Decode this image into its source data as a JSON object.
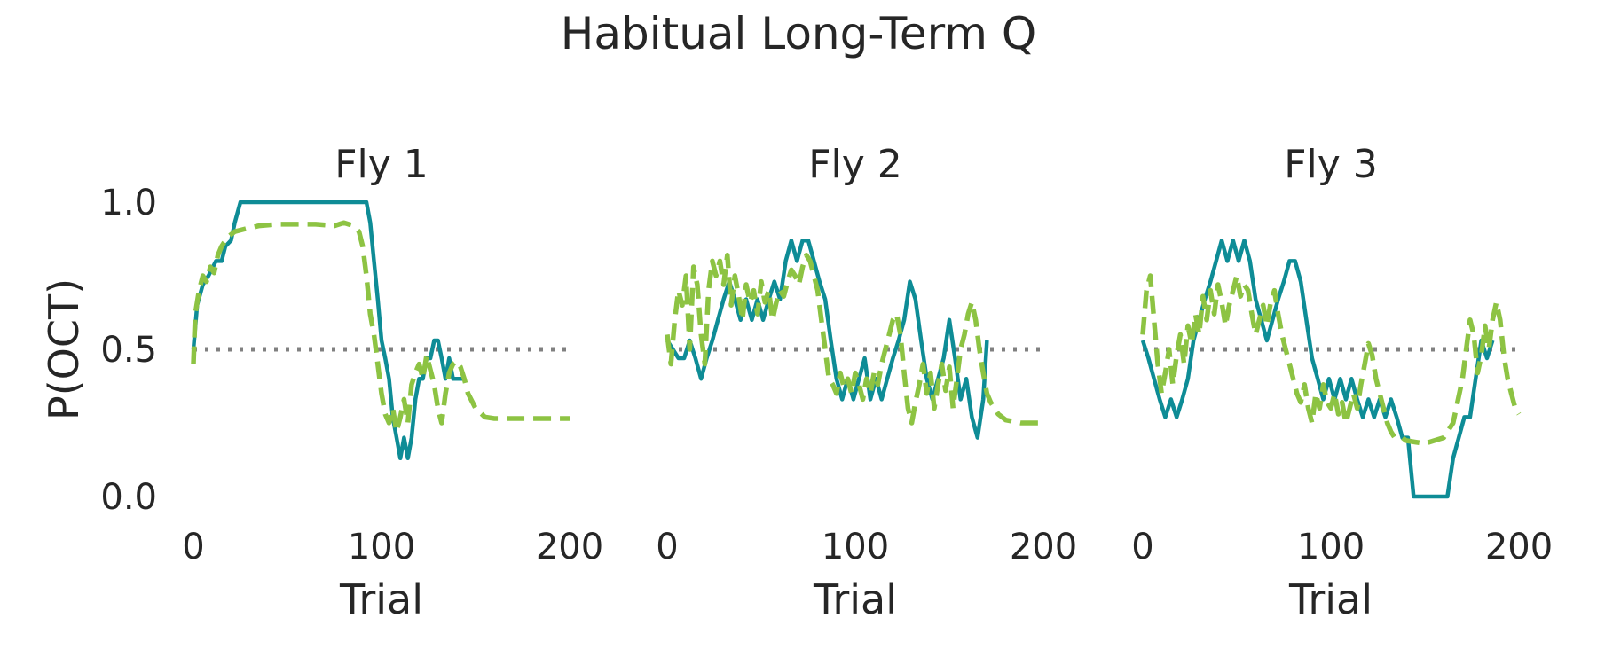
{
  "title": "Habitual Long-Term Q",
  "colors": {
    "observed": "#0e8c96",
    "model": "#8dc343",
    "chance": "#808080"
  },
  "chart_data": [
    {
      "type": "line",
      "title": "Fly 1",
      "xlabel": "Trial",
      "ylabel": "P(OCT)",
      "xlim": [
        0,
        200
      ],
      "ylim": [
        0,
        1
      ],
      "xticks": [
        "0",
        "100",
        "200"
      ],
      "yticks": [
        "0.0",
        "0.5",
        "1.0"
      ],
      "grid": false,
      "chance_level": 0.5,
      "series": [
        {
          "style": "solid",
          "x": [
            0,
            2,
            5,
            8,
            12,
            15,
            17,
            20,
            22,
            25,
            30,
            40,
            50,
            60,
            70,
            80,
            88,
            92,
            94,
            96,
            98,
            100,
            102,
            104,
            106,
            108,
            110,
            112,
            114,
            116,
            118,
            120,
            122,
            124,
            126,
            128,
            130,
            132,
            134,
            136,
            138,
            140,
            142,
            144
          ],
          "y": [
            0.5,
            0.65,
            0.72,
            0.75,
            0.8,
            0.8,
            0.85,
            0.87,
            0.93,
            1.0,
            1.0,
            1.0,
            1.0,
            1.0,
            1.0,
            1.0,
            1.0,
            1.0,
            0.93,
            0.8,
            0.67,
            0.53,
            0.47,
            0.4,
            0.27,
            0.2,
            0.13,
            0.2,
            0.13,
            0.2,
            0.33,
            0.4,
            0.4,
            0.47,
            0.47,
            0.53,
            0.53,
            0.47,
            0.4,
            0.47,
            0.4,
            0.4,
            0.4,
            0.4
          ]
        },
        {
          "style": "dashed",
          "x": [
            0,
            1,
            3,
            5,
            7,
            9,
            11,
            13,
            15,
            18,
            22,
            28,
            35,
            45,
            55,
            65,
            75,
            80,
            85,
            88,
            90,
            92,
            94,
            96,
            98,
            100,
            102,
            104,
            106,
            108,
            110,
            112,
            114,
            116,
            118,
            120,
            122,
            124,
            126,
            128,
            130,
            132,
            134,
            136,
            138,
            140,
            142,
            144,
            146,
            150,
            155,
            160,
            170,
            180,
            190,
            200
          ],
          "y": [
            0.45,
            0.62,
            0.7,
            0.75,
            0.73,
            0.78,
            0.76,
            0.82,
            0.85,
            0.88,
            0.9,
            0.91,
            0.92,
            0.925,
            0.925,
            0.925,
            0.92,
            0.93,
            0.92,
            0.9,
            0.85,
            0.75,
            0.62,
            0.55,
            0.45,
            0.35,
            0.28,
            0.25,
            0.3,
            0.22,
            0.27,
            0.33,
            0.25,
            0.38,
            0.42,
            0.45,
            0.4,
            0.48,
            0.43,
            0.38,
            0.3,
            0.25,
            0.35,
            0.42,
            0.45,
            0.46,
            0.44,
            0.4,
            0.35,
            0.3,
            0.27,
            0.265,
            0.265,
            0.265,
            0.265,
            0.265
          ]
        }
      ]
    },
    {
      "type": "line",
      "title": "Fly 2",
      "xlabel": "Trial",
      "ylabel": "",
      "xlim": [
        0,
        200
      ],
      "ylim": [
        0,
        1
      ],
      "xticks": [
        "0",
        "100",
        "200"
      ],
      "yticks": [],
      "grid": false,
      "chance_level": 0.5,
      "series": [
        {
          "style": "solid",
          "x": [
            0,
            3,
            6,
            9,
            12,
            15,
            18,
            21,
            24,
            27,
            30,
            33,
            36,
            39,
            42,
            45,
            48,
            51,
            54,
            57,
            60,
            63,
            66,
            69,
            72,
            75,
            78,
            81,
            84,
            87,
            90,
            93,
            96,
            99,
            102,
            105,
            108,
            111,
            114,
            117,
            120,
            123,
            126,
            129,
            132,
            135,
            138,
            141,
            144,
            147,
            150,
            153,
            156,
            159,
            162,
            165,
            168,
            170
          ],
          "y": [
            0.53,
            0.5,
            0.47,
            0.47,
            0.53,
            0.47,
            0.4,
            0.47,
            0.53,
            0.6,
            0.67,
            0.73,
            0.67,
            0.6,
            0.67,
            0.6,
            0.67,
            0.6,
            0.67,
            0.73,
            0.67,
            0.8,
            0.87,
            0.8,
            0.87,
            0.87,
            0.8,
            0.73,
            0.67,
            0.53,
            0.4,
            0.33,
            0.4,
            0.33,
            0.4,
            0.47,
            0.33,
            0.4,
            0.33,
            0.4,
            0.47,
            0.53,
            0.6,
            0.73,
            0.67,
            0.53,
            0.4,
            0.33,
            0.4,
            0.47,
            0.6,
            0.47,
            0.33,
            0.4,
            0.27,
            0.2,
            0.33,
            0.53
          ]
        },
        {
          "style": "dashed",
          "x": [
            0,
            2,
            4,
            6,
            8,
            10,
            12,
            14,
            16,
            18,
            20,
            22,
            24,
            26,
            28,
            30,
            32,
            34,
            36,
            38,
            40,
            42,
            44,
            46,
            48,
            50,
            52,
            54,
            56,
            58,
            60,
            62,
            64,
            66,
            68,
            70,
            72,
            74,
            76,
            78,
            80,
            82,
            84,
            86,
            88,
            90,
            92,
            94,
            96,
            98,
            100,
            102,
            104,
            106,
            108,
            110,
            112,
            114,
            116,
            118,
            120,
            122,
            124,
            126,
            128,
            130,
            132,
            134,
            136,
            138,
            140,
            142,
            144,
            146,
            148,
            150,
            152,
            154,
            156,
            158,
            160,
            162,
            164,
            166,
            168,
            170,
            172,
            174,
            176,
            178,
            180,
            184,
            188,
            192,
            196,
            200
          ],
          "y": [
            0.55,
            0.45,
            0.6,
            0.7,
            0.65,
            0.75,
            0.5,
            0.78,
            0.72,
            0.55,
            0.45,
            0.7,
            0.8,
            0.75,
            0.8,
            0.72,
            0.82,
            0.65,
            0.75,
            0.68,
            0.6,
            0.72,
            0.66,
            0.7,
            0.62,
            0.73,
            0.66,
            0.7,
            0.6,
            0.66,
            0.7,
            0.68,
            0.73,
            0.77,
            0.75,
            0.72,
            0.78,
            0.82,
            0.8,
            0.75,
            0.7,
            0.6,
            0.5,
            0.4,
            0.38,
            0.35,
            0.42,
            0.37,
            0.4,
            0.35,
            0.42,
            0.38,
            0.33,
            0.4,
            0.35,
            0.42,
            0.38,
            0.45,
            0.5,
            0.55,
            0.6,
            0.62,
            0.55,
            0.42,
            0.3,
            0.25,
            0.32,
            0.38,
            0.45,
            0.35,
            0.42,
            0.3,
            0.38,
            0.45,
            0.36,
            0.44,
            0.3,
            0.4,
            0.5,
            0.55,
            0.62,
            0.66,
            0.6,
            0.5,
            0.42,
            0.35,
            0.32,
            0.3,
            0.28,
            0.27,
            0.26,
            0.255,
            0.25,
            0.25,
            0.25,
            0.25
          ]
        }
      ]
    },
    {
      "type": "line",
      "title": "Fly 3",
      "xlabel": "Trial",
      "ylabel": "",
      "xlim": [
        0,
        200
      ],
      "ylim": [
        0,
        1
      ],
      "xticks": [
        "0",
        "100",
        "200"
      ],
      "yticks": [],
      "grid": false,
      "chance_level": 0.5,
      "series": [
        {
          "style": "solid",
          "x": [
            0,
            3,
            6,
            9,
            12,
            15,
            18,
            21,
            24,
            27,
            30,
            33,
            36,
            39,
            42,
            45,
            48,
            51,
            54,
            57,
            60,
            63,
            66,
            69,
            72,
            75,
            78,
            81,
            84,
            87,
            90,
            93,
            96,
            99,
            102,
            105,
            108,
            111,
            114,
            117,
            120,
            123,
            126,
            129,
            132,
            135,
            138,
            141,
            144,
            150,
            156,
            162,
            165,
            168,
            171,
            174,
            177,
            180,
            183,
            186
          ],
          "y": [
            0.53,
            0.47,
            0.4,
            0.33,
            0.27,
            0.33,
            0.27,
            0.33,
            0.4,
            0.53,
            0.6,
            0.67,
            0.73,
            0.8,
            0.87,
            0.8,
            0.87,
            0.8,
            0.87,
            0.8,
            0.67,
            0.6,
            0.53,
            0.6,
            0.67,
            0.73,
            0.8,
            0.8,
            0.73,
            0.6,
            0.47,
            0.4,
            0.33,
            0.4,
            0.33,
            0.4,
            0.33,
            0.4,
            0.33,
            0.27,
            0.33,
            0.27,
            0.33,
            0.27,
            0.33,
            0.27,
            0.2,
            0.2,
            0.0,
            0.0,
            0.0,
            0.0,
            0.13,
            0.2,
            0.27,
            0.27,
            0.4,
            0.53,
            0.47,
            0.53
          ]
        },
        {
          "style": "dashed",
          "x": [
            0,
            2,
            4,
            6,
            8,
            10,
            12,
            14,
            16,
            18,
            20,
            22,
            24,
            26,
            28,
            30,
            32,
            34,
            36,
            38,
            40,
            42,
            44,
            46,
            48,
            50,
            52,
            54,
            56,
            58,
            60,
            62,
            64,
            66,
            68,
            70,
            72,
            74,
            76,
            78,
            80,
            82,
            84,
            86,
            88,
            90,
            92,
            94,
            96,
            98,
            100,
            102,
            104,
            106,
            108,
            110,
            112,
            114,
            116,
            118,
            120,
            122,
            124,
            126,
            128,
            130,
            132,
            134,
            136,
            138,
            140,
            145,
            150,
            155,
            160,
            165,
            170,
            172,
            174,
            176,
            178,
            180,
            182,
            184,
            186,
            188,
            190,
            192,
            194,
            196,
            198,
            200
          ],
          "y": [
            0.55,
            0.7,
            0.75,
            0.6,
            0.45,
            0.35,
            0.42,
            0.5,
            0.38,
            0.48,
            0.55,
            0.45,
            0.58,
            0.52,
            0.62,
            0.55,
            0.68,
            0.6,
            0.7,
            0.62,
            0.72,
            0.66,
            0.58,
            0.65,
            0.7,
            0.75,
            0.68,
            0.72,
            0.7,
            0.62,
            0.55,
            0.6,
            0.65,
            0.58,
            0.66,
            0.7,
            0.62,
            0.55,
            0.5,
            0.45,
            0.4,
            0.35,
            0.32,
            0.38,
            0.3,
            0.25,
            0.35,
            0.3,
            0.38,
            0.32,
            0.3,
            0.35,
            0.28,
            0.32,
            0.25,
            0.3,
            0.35,
            0.3,
            0.38,
            0.45,
            0.52,
            0.48,
            0.4,
            0.35,
            0.3,
            0.25,
            0.22,
            0.2,
            0.2,
            0.2,
            0.19,
            0.185,
            0.18,
            0.19,
            0.2,
            0.25,
            0.4,
            0.5,
            0.6,
            0.55,
            0.42,
            0.48,
            0.58,
            0.5,
            0.6,
            0.66,
            0.6,
            0.48,
            0.4,
            0.35,
            0.3,
            0.28
          ]
        }
      ]
    }
  ]
}
